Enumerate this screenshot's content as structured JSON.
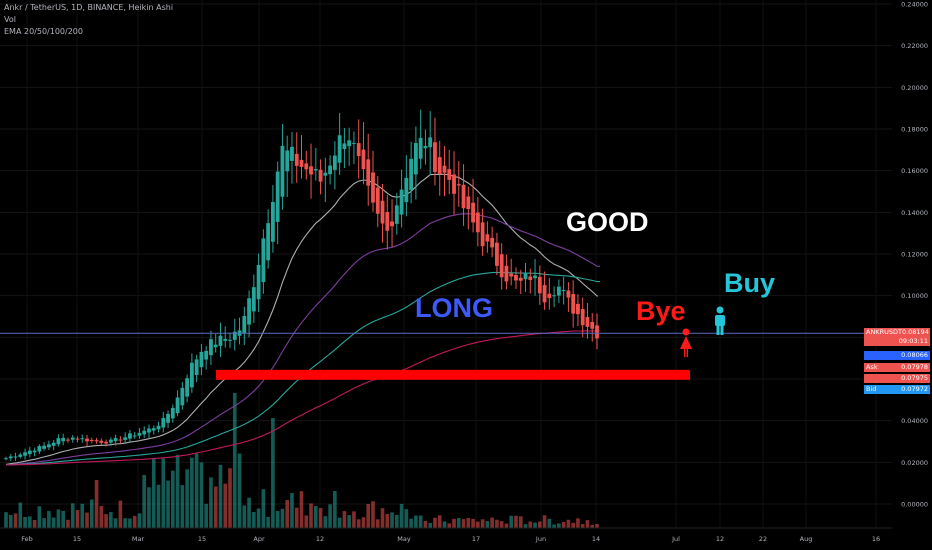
{
  "legend": {
    "symbol_line": "Ankr / TetherUS, 1D, BINANCE, Heikin Ashi",
    "vol_line": "Vol",
    "ema_line": "EMA 20/50/100/200"
  },
  "annotations": {
    "long": "LONG",
    "good": "GOOD",
    "bye": "Bye",
    "buy": "Buy",
    "bye_color": "#ff1a1a",
    "buy_color": "#26c6da",
    "long_color": "#3d5afe",
    "good_color": "#ffffff"
  },
  "price_tags": {
    "symbol": "ANKRUSDT",
    "last_price": "0.08194",
    "countdown": "09:03:11",
    "level_1": "0.08066",
    "ask_label": "Ask",
    "ask_price": "0.07978",
    "mid_price": "0.07975",
    "bid_label": "Bid",
    "bid_price": "0.07972"
  },
  "colors": {
    "up": "#26a69a",
    "down": "#ef5350",
    "ema20": "#b0b0b0",
    "ema50": "#7b3f9e",
    "ema100": "#26a69a",
    "ema200": "#c2185b",
    "support": "#ff0000",
    "price_line": "#5c6bc0"
  },
  "chart_data": {
    "type": "candlestick",
    "x_tick_labels": [
      "Feb",
      "15",
      "Mar",
      "15",
      "Apr",
      "12",
      "May",
      "17",
      "Jun",
      "14",
      "Jul",
      "12",
      "22",
      "Aug",
      "16"
    ],
    "y_tick_labels": [
      "0.24000",
      "0.22000",
      "0.20000",
      "0.18000",
      "0.16000",
      "0.14000",
      "0.12000",
      "0.10000",
      "0.08000",
      "0.06000",
      "0.04000",
      "0.02000",
      "0.00000"
    ],
    "ylim": [
      -0.004,
      0.24
    ],
    "close_path": [
      0.022,
      0.024,
      0.026,
      0.028,
      0.031,
      0.032,
      0.031,
      0.03,
      0.03,
      0.032,
      0.034,
      0.036,
      0.04,
      0.05,
      0.065,
      0.075,
      0.078,
      0.08,
      0.085,
      0.11,
      0.14,
      0.17,
      0.165,
      0.16,
      0.155,
      0.17,
      0.18,
      0.16,
      0.14,
      0.13,
      0.15,
      0.17,
      0.175,
      0.16,
      0.155,
      0.14,
      0.13,
      0.12,
      0.11,
      0.105,
      0.11,
      0.1,
      0.105,
      0.095,
      0.088,
      0.082
    ],
    "support_level": 0.062,
    "current_price": 0.08194
  }
}
